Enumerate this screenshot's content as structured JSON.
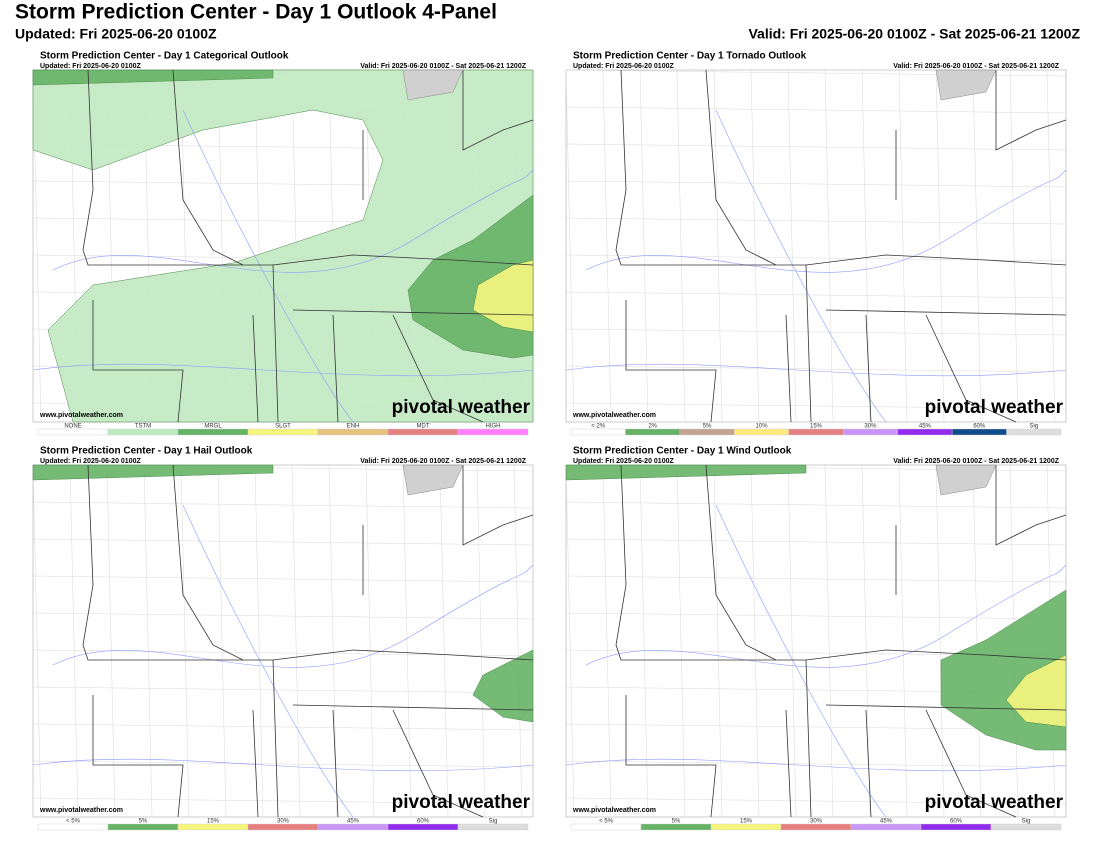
{
  "header": {
    "title": "Storm Prediction Center - Day 1 Outlook 4-Panel",
    "updated": "Updated: Fri 2025-06-20 0100Z",
    "valid": "Valid: Fri 2025-06-20 0100Z - Sat 2025-06-21 1200Z"
  },
  "panels": [
    {
      "title": "Storm Prediction Center - Day 1 Categorical Outlook",
      "updated": "Updated: Fri 2025-06-20 0100Z",
      "valid": "Valid: Fri 2025-06-20 0100Z - Sat 2025-06-21 1200Z",
      "credit": "www.pivotalweather.com",
      "brand": "pivotal weather",
      "legend": [
        {
          "label": "NONE",
          "color": "#ffffff"
        },
        {
          "label": "TSTM",
          "color": "#c1e9c1"
        },
        {
          "label": "MRGL",
          "color": "#66b366"
        },
        {
          "label": "SLGT",
          "color": "#f6f67f"
        },
        {
          "label": "ENH",
          "color": "#e6c27f"
        },
        {
          "label": "MDT",
          "color": "#e67f7f"
        },
        {
          "label": "HIGH",
          "color": "#ff7fff"
        }
      ]
    },
    {
      "title": "Storm Prediction Center - Day 1 Tornado Outlook",
      "updated": "Updated: Fri 2025-06-20 0100Z",
      "valid": "Valid: Fri 2025-06-20 0100Z - Sat 2025-06-21 1200Z",
      "credit": "www.pivotalweather.com",
      "brand": "pivotal weather",
      "legend": [
        {
          "label": "< 2%",
          "color": "#ffffff"
        },
        {
          "label": "2%",
          "color": "#66b366"
        },
        {
          "label": "5%",
          "color": "#c5a393"
        },
        {
          "label": "10%",
          "color": "#ffeb80"
        },
        {
          "label": "15%",
          "color": "#e67f7f"
        },
        {
          "label": "30%",
          "color": "#c896f7"
        },
        {
          "label": "45%",
          "color": "#912cee"
        },
        {
          "label": "60%",
          "color": "#104e8b"
        },
        {
          "label": "Sig",
          "color": "#dddddd"
        }
      ]
    },
    {
      "title": "Storm Prediction Center - Day 1 Hail Outlook",
      "updated": "Updated: Fri 2025-06-20 0100Z",
      "valid": "Valid: Fri 2025-06-20 0100Z - Sat 2025-06-21 1200Z",
      "credit": "www.pivotalweather.com",
      "brand": "pivotal weather",
      "legend": [
        {
          "label": "< 5%",
          "color": "#ffffff"
        },
        {
          "label": "5%",
          "color": "#66b366"
        },
        {
          "label": "15%",
          "color": "#f6f67f"
        },
        {
          "label": "30%",
          "color": "#e67f7f"
        },
        {
          "label": "45%",
          "color": "#c896f7"
        },
        {
          "label": "60%",
          "color": "#912cee"
        },
        {
          "label": "Sig",
          "color": "#dddddd"
        }
      ]
    },
    {
      "title": "Storm Prediction Center - Day 1 Wind Outlook",
      "updated": "Updated: Fri 2025-06-20 0100Z",
      "valid": "Valid: Fri 2025-06-20 0100Z - Sat 2025-06-21 1200Z",
      "credit": "www.pivotalweather.com",
      "brand": "pivotal weather",
      "legend": [
        {
          "label": "< 5%",
          "color": "#ffffff"
        },
        {
          "label": "5%",
          "color": "#66b366"
        },
        {
          "label": "15%",
          "color": "#f6f67f"
        },
        {
          "label": "30%",
          "color": "#e67f7f"
        },
        {
          "label": "45%",
          "color": "#c896f7"
        },
        {
          "label": "60%",
          "color": "#912cee"
        },
        {
          "label": "Sig",
          "color": "#dddddd"
        }
      ]
    }
  ]
}
